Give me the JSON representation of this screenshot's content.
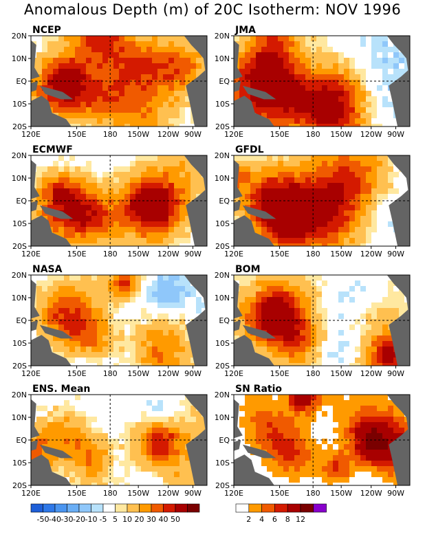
{
  "title": "Anomalous Depth (m) of 20C Isotherm: NOV 1996",
  "chart_data": {
    "type": "heatmap",
    "title": "Anomalous Depth (m) of 20C Isotherm: NOV 1996",
    "x_ticks": [
      "120E",
      "150E",
      "180",
      "150W",
      "120W",
      "90W"
    ],
    "y_ticks": [
      "20N",
      "10N",
      "EQ",
      "10S",
      "20S"
    ],
    "grid": "dashed lines at 180 and EQ",
    "panels": [
      {
        "title": "NCEP",
        "position": "row1-left"
      },
      {
        "title": "JMA",
        "position": "row1-right"
      },
      {
        "title": "ECMWF",
        "position": "row2-left"
      },
      {
        "title": "GFDL",
        "position": "row2-right"
      },
      {
        "title": "NASA",
        "position": "row3-left"
      },
      {
        "title": "BOM",
        "position": "row3-right"
      },
      {
        "title": "ENS. Mean",
        "position": "row4-left"
      },
      {
        "title": "SN Ratio",
        "position": "row4-right"
      }
    ],
    "anomaly_colorbar": {
      "labels": [
        "-50",
        "-40",
        "-30",
        "-20",
        "-10",
        "-5",
        "5",
        "10",
        "20",
        "30",
        "40",
        "50"
      ],
      "colors": [
        "#1e5fd8",
        "#2e78e8",
        "#4a95f0",
        "#6aaef5",
        "#8fc7fa",
        "#b8e2fb",
        "#ffffff",
        "#ffe8a0",
        "#ffc050",
        "#ff9a00",
        "#f05a00",
        "#d41a00",
        "#a80000",
        "#7a0000"
      ]
    },
    "sn_colorbar": {
      "labels": [
        "2",
        "4",
        "6",
        "8",
        "12"
      ],
      "colors": [
        "#ffffff",
        "#ff9a00",
        "#f05a00",
        "#d41a00",
        "#a80000",
        "#7a0000",
        "#8800cc"
      ]
    }
  },
  "colors": {
    "land": "#646464",
    "background": "#ffffff"
  }
}
